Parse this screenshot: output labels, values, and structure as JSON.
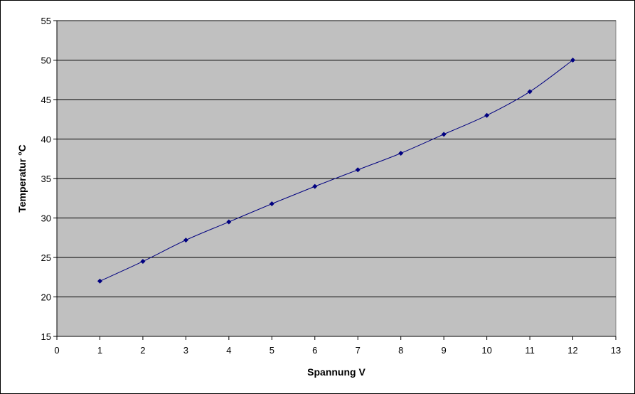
{
  "chart_data": {
    "type": "line",
    "title": "",
    "xlabel": "Spannung V",
    "ylabel": "Temperatur °C",
    "xlim": [
      0,
      13
    ],
    "ylim": [
      15,
      55
    ],
    "x_ticks": [
      0,
      1,
      2,
      3,
      4,
      5,
      6,
      7,
      8,
      9,
      10,
      11,
      12,
      13
    ],
    "y_ticks": [
      15,
      20,
      25,
      30,
      35,
      40,
      45,
      50,
      55
    ],
    "grid": "horizontal",
    "legend": "none",
    "series": [
      {
        "x": [
          1,
          2,
          3,
          4,
          5,
          6,
          7,
          8,
          9,
          10,
          11,
          12
        ],
        "y": [
          22,
          24.5,
          27.2,
          29.5,
          31.8,
          34,
          36.1,
          38.2,
          40.6,
          43,
          46,
          50
        ],
        "color": "#000080",
        "marker": "diamond",
        "smooth": true
      }
    ],
    "colors": {
      "plot_background": "#c0c0c0",
      "gridline": "#000000",
      "line": "#000080"
    }
  }
}
